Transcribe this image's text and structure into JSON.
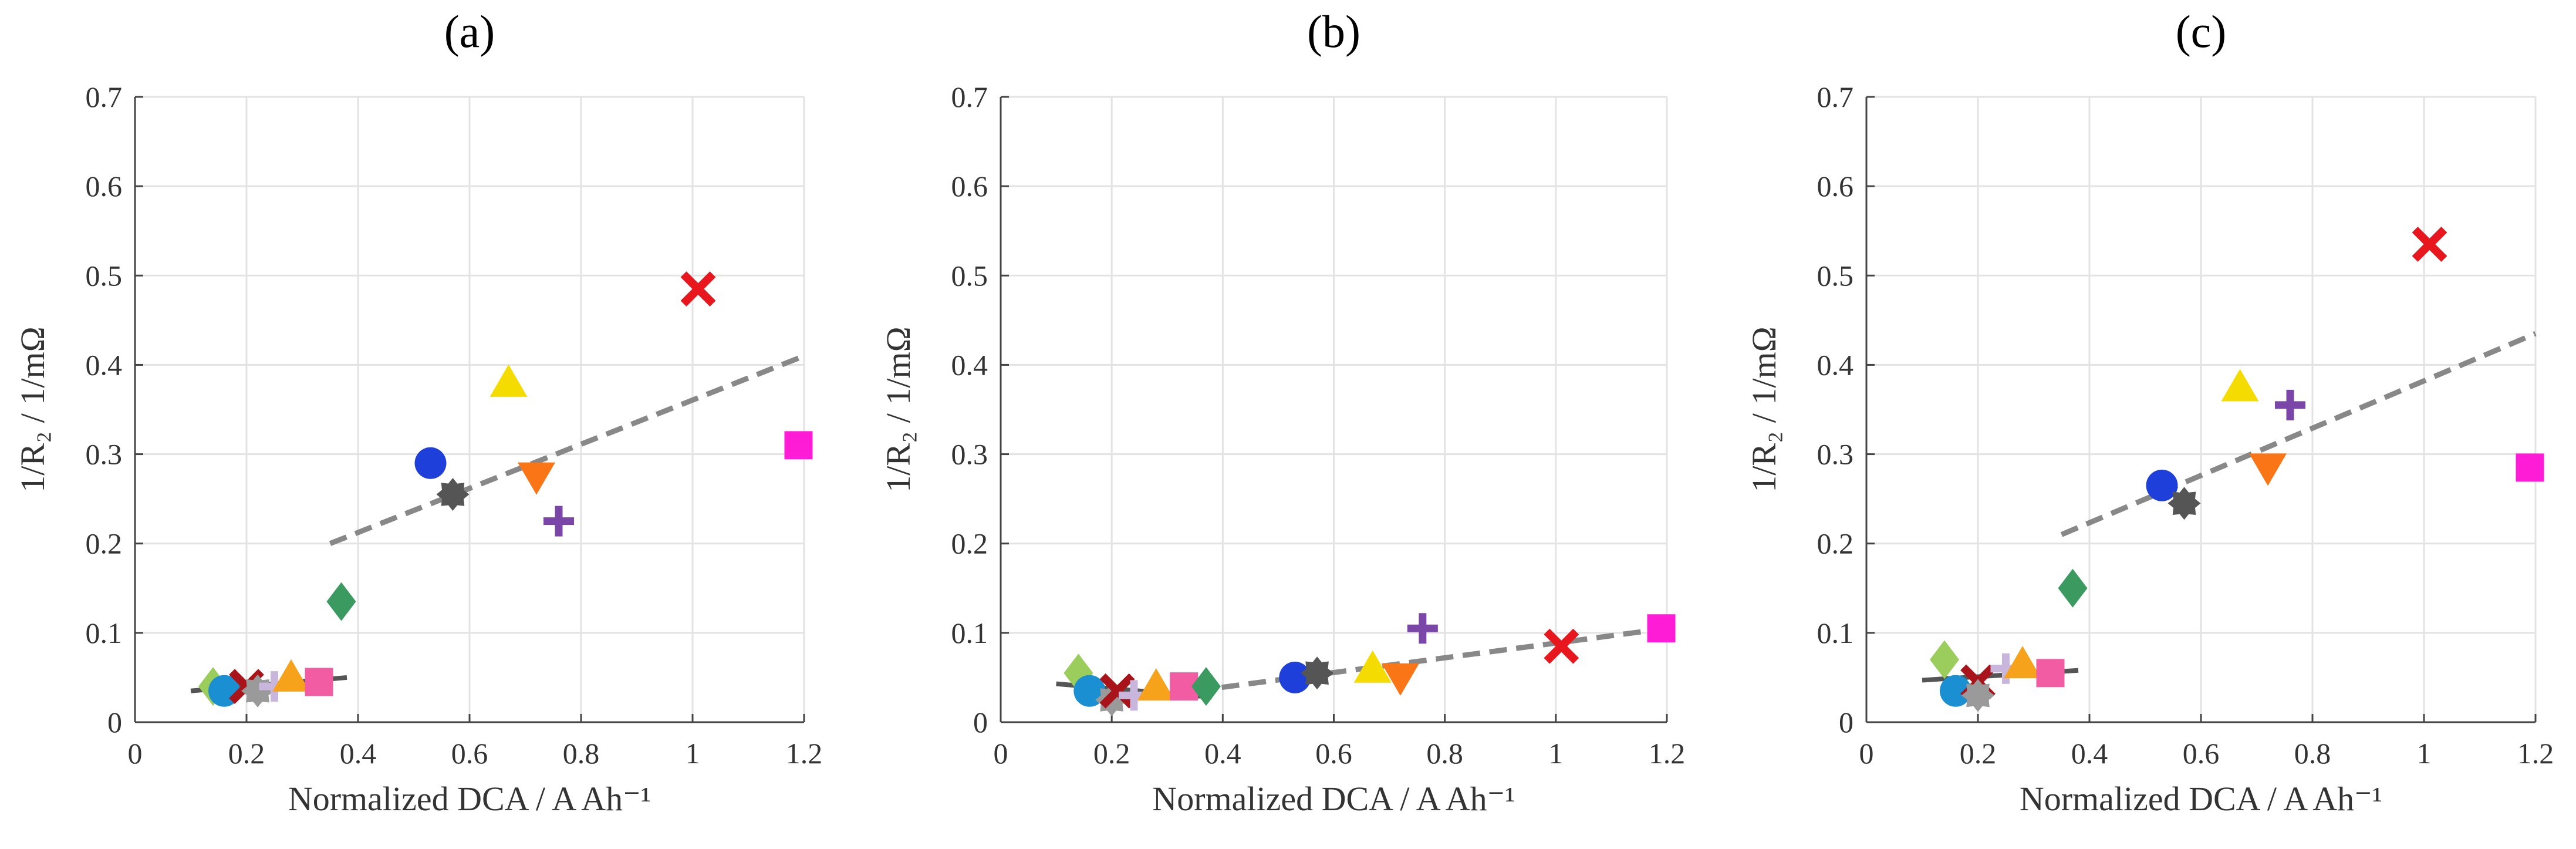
{
  "figure_labels": [
    "(a)",
    "(b)",
    "(c)"
  ],
  "axis_text": {
    "xlabel": "Normalized DCA / A Ah⁻¹",
    "ylabel": "1/R₂ / 1/mΩ"
  },
  "colors": {
    "blue": "#1f3fdb",
    "dark_gray": "#555555",
    "yellow": "#f5dc00",
    "orange": "#f97516",
    "red": "#e8171e",
    "purple": "#7a46a8",
    "magenta": "#ff1cd6",
    "green": "#3a9a5f",
    "light_green": "#9acd5b",
    "teal": "#1a8fd2",
    "light_orange": "#f6a21a",
    "pink": "#f25ca2",
    "lavender": "#c8b6dc",
    "silver": "#9a9a9a",
    "dark_red": "#a8141a",
    "fit_solid": "#555555",
    "fit_dashed": "#888888"
  },
  "chart_data": [
    {
      "type": "scatter",
      "panel": "(a)",
      "title": "(a)",
      "xlabel": "Normalized DCA / A Ah⁻¹",
      "ylabel": "1/R₂ / 1/mΩ",
      "xlim": [
        0,
        1.2
      ],
      "ylim": [
        0,
        0.7
      ],
      "xticks": [
        0,
        0.2,
        0.4,
        0.6,
        0.8,
        1.0,
        1.2
      ],
      "xtick_labels": [
        "0",
        "0.2",
        "0.4",
        "0.6",
        "0.8",
        "1",
        "1.2"
      ],
      "yticks": [
        0,
        0.1,
        0.2,
        0.3,
        0.4,
        0.5,
        0.6,
        0.7
      ],
      "ytick_labels": [
        "0",
        "0.1",
        "0.2",
        "0.3",
        "0.4",
        "0.5",
        "0.6",
        "0.7"
      ],
      "grid": true,
      "fits": [
        {
          "style": "solid",
          "x": [
            0.1,
            0.38
          ],
          "y": [
            0.035,
            0.05
          ]
        },
        {
          "style": "dashed",
          "x": [
            0.35,
            1.2
          ],
          "y": [
            0.2,
            0.41
          ]
        }
      ],
      "points": [
        {
          "marker": "diamond",
          "color": "light_green",
          "x": 0.14,
          "y": 0.04
        },
        {
          "marker": "circle",
          "color": "teal",
          "x": 0.16,
          "y": 0.035
        },
        {
          "marker": "cross",
          "color": "dark_red",
          "x": 0.2,
          "y": 0.04
        },
        {
          "marker": "gear",
          "color": "silver",
          "x": 0.22,
          "y": 0.035
        },
        {
          "marker": "plus",
          "color": "lavender",
          "x": 0.25,
          "y": 0.04
        },
        {
          "marker": "triangle_up",
          "color": "light_orange",
          "x": 0.28,
          "y": 0.05
        },
        {
          "marker": "square",
          "color": "pink",
          "x": 0.33,
          "y": 0.045
        },
        {
          "marker": "diamond",
          "color": "green",
          "x": 0.37,
          "y": 0.135
        },
        {
          "marker": "circle",
          "color": "blue",
          "x": 0.53,
          "y": 0.29
        },
        {
          "marker": "gear",
          "color": "dark_gray",
          "x": 0.57,
          "y": 0.255
        },
        {
          "marker": "triangle_up",
          "color": "yellow",
          "x": 0.67,
          "y": 0.38
        },
        {
          "marker": "triangle_down",
          "color": "orange",
          "x": 0.72,
          "y": 0.275
        },
        {
          "marker": "plus",
          "color": "purple",
          "x": 0.76,
          "y": 0.225
        },
        {
          "marker": "cross",
          "color": "red",
          "x": 1.01,
          "y": 0.485
        },
        {
          "marker": "square",
          "color": "magenta",
          "x": 1.19,
          "y": 0.31
        }
      ]
    },
    {
      "type": "scatter",
      "panel": "(b)",
      "title": "(b)",
      "xlabel": "Normalized DCA / A Ah⁻¹",
      "ylabel": "1/R₂ / 1/mΩ",
      "xlim": [
        0,
        1.2
      ],
      "ylim": [
        0,
        0.7
      ],
      "xticks": [
        0,
        0.2,
        0.4,
        0.6,
        0.8,
        1.0,
        1.2
      ],
      "xtick_labels": [
        "0",
        "0.2",
        "0.4",
        "0.6",
        "0.8",
        "1",
        "1.2"
      ],
      "yticks": [
        0,
        0.1,
        0.2,
        0.3,
        0.4,
        0.5,
        0.6,
        0.7
      ],
      "ytick_labels": [
        "0",
        "0.1",
        "0.2",
        "0.3",
        "0.4",
        "0.5",
        "0.6",
        "0.7"
      ],
      "grid": true,
      "fits": [
        {
          "style": "solid",
          "x": [
            0.1,
            0.38
          ],
          "y": [
            0.043,
            0.028
          ]
        },
        {
          "style": "dashed",
          "x": [
            0.35,
            1.2
          ],
          "y": [
            0.035,
            0.105
          ]
        }
      ],
      "points": [
        {
          "marker": "diamond",
          "color": "light_green",
          "x": 0.14,
          "y": 0.055
        },
        {
          "marker": "circle",
          "color": "teal",
          "x": 0.16,
          "y": 0.035
        },
        {
          "marker": "gear",
          "color": "silver",
          "x": 0.2,
          "y": 0.025
        },
        {
          "marker": "cross",
          "color": "dark_red",
          "x": 0.21,
          "y": 0.035
        },
        {
          "marker": "plus",
          "color": "lavender",
          "x": 0.24,
          "y": 0.03
        },
        {
          "marker": "triangle_up",
          "color": "light_orange",
          "x": 0.28,
          "y": 0.04
        },
        {
          "marker": "square",
          "color": "pink",
          "x": 0.33,
          "y": 0.04
        },
        {
          "marker": "diamond",
          "color": "green",
          "x": 0.37,
          "y": 0.04
        },
        {
          "marker": "circle",
          "color": "blue",
          "x": 0.53,
          "y": 0.05
        },
        {
          "marker": "gear",
          "color": "dark_gray",
          "x": 0.57,
          "y": 0.055
        },
        {
          "marker": "triangle_up",
          "color": "yellow",
          "x": 0.67,
          "y": 0.06
        },
        {
          "marker": "triangle_down",
          "color": "orange",
          "x": 0.72,
          "y": 0.05
        },
        {
          "marker": "plus",
          "color": "purple",
          "x": 0.76,
          "y": 0.105
        },
        {
          "marker": "cross",
          "color": "red",
          "x": 1.01,
          "y": 0.085
        },
        {
          "marker": "square",
          "color": "magenta",
          "x": 1.19,
          "y": 0.105
        }
      ]
    },
    {
      "type": "scatter",
      "panel": "(c)",
      "title": "(c)",
      "xlabel": "Normalized DCA / A Ah⁻¹",
      "ylabel": "1/R₂ / 1/mΩ",
      "xlim": [
        0,
        1.2
      ],
      "ylim": [
        0,
        0.7
      ],
      "xticks": [
        0,
        0.2,
        0.4,
        0.6,
        0.8,
        1.0,
        1.2
      ],
      "xtick_labels": [
        "0",
        "0.2",
        "0.4",
        "0.6",
        "0.8",
        "1",
        "1.2"
      ],
      "yticks": [
        0,
        0.1,
        0.2,
        0.3,
        0.4,
        0.5,
        0.6,
        0.7
      ],
      "ytick_labels": [
        "0",
        "0.1",
        "0.2",
        "0.3",
        "0.4",
        "0.5",
        "0.6",
        "0.7"
      ],
      "grid": true,
      "fits": [
        {
          "style": "solid",
          "x": [
            0.1,
            0.38
          ],
          "y": [
            0.047,
            0.058
          ]
        },
        {
          "style": "dashed",
          "x": [
            0.35,
            1.2
          ],
          "y": [
            0.21,
            0.435
          ]
        }
      ],
      "points": [
        {
          "marker": "diamond",
          "color": "light_green",
          "x": 0.14,
          "y": 0.07
        },
        {
          "marker": "circle",
          "color": "teal",
          "x": 0.16,
          "y": 0.035
        },
        {
          "marker": "cross",
          "color": "dark_red",
          "x": 0.2,
          "y": 0.045
        },
        {
          "marker": "gear",
          "color": "silver",
          "x": 0.2,
          "y": 0.03
        },
        {
          "marker": "plus",
          "color": "lavender",
          "x": 0.25,
          "y": 0.06
        },
        {
          "marker": "triangle_up",
          "color": "light_orange",
          "x": 0.28,
          "y": 0.065
        },
        {
          "marker": "square",
          "color": "pink",
          "x": 0.33,
          "y": 0.055
        },
        {
          "marker": "diamond",
          "color": "green",
          "x": 0.37,
          "y": 0.15
        },
        {
          "marker": "circle",
          "color": "blue",
          "x": 0.53,
          "y": 0.265
        },
        {
          "marker": "gear",
          "color": "dark_gray",
          "x": 0.57,
          "y": 0.245
        },
        {
          "marker": "triangle_up",
          "color": "yellow",
          "x": 0.67,
          "y": 0.375
        },
        {
          "marker": "triangle_down",
          "color": "orange",
          "x": 0.72,
          "y": 0.285
        },
        {
          "marker": "plus",
          "color": "purple",
          "x": 0.76,
          "y": 0.355
        },
        {
          "marker": "cross",
          "color": "red",
          "x": 1.01,
          "y": 0.535
        },
        {
          "marker": "square",
          "color": "magenta",
          "x": 1.19,
          "y": 0.285
        }
      ]
    }
  ]
}
